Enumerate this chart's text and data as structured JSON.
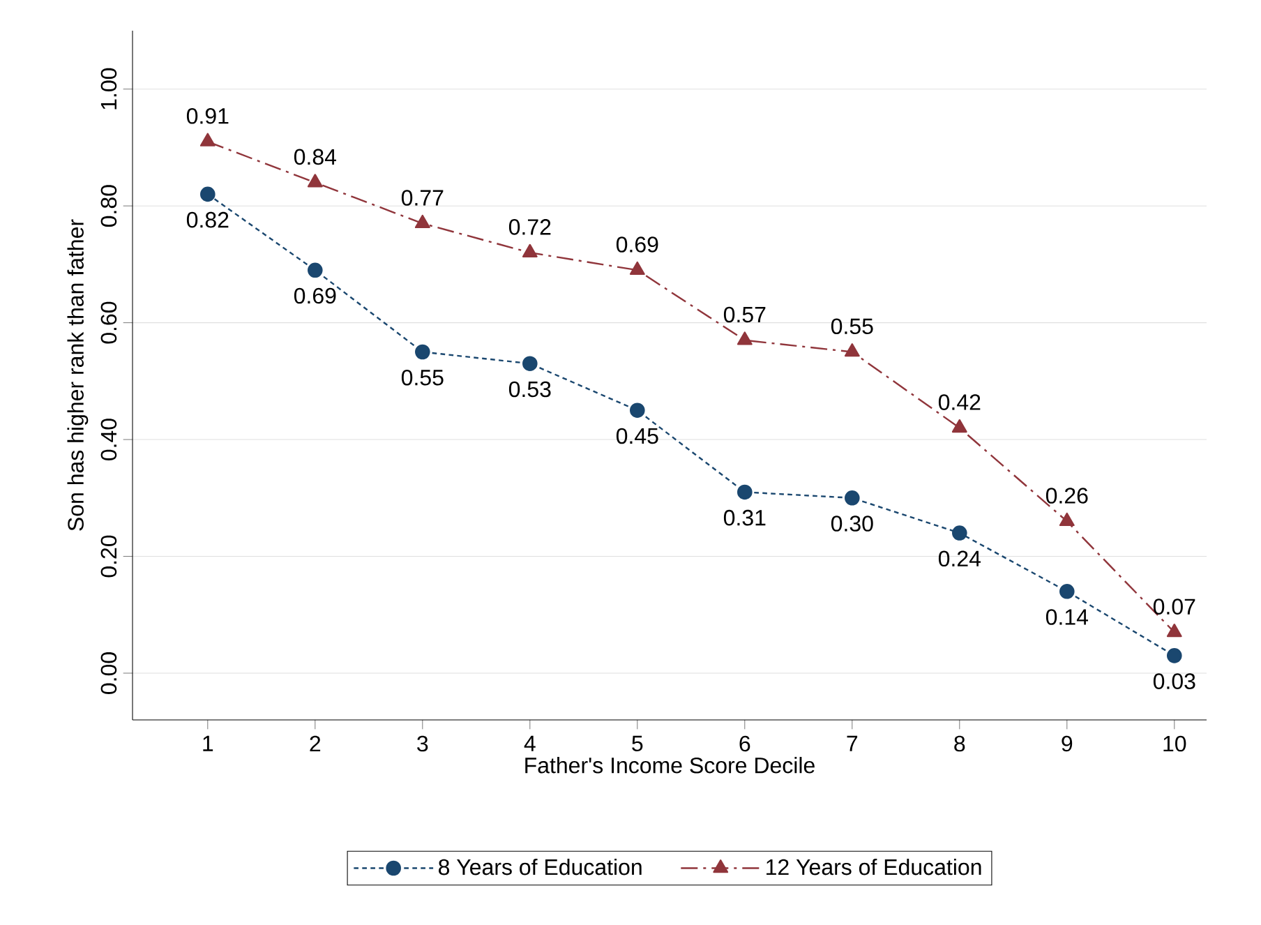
{
  "chart_data": {
    "type": "line",
    "xlabel": "Father's Income Score Decile",
    "ylabel": "Son has higher rank than father",
    "x": [
      1,
      2,
      3,
      4,
      5,
      6,
      7,
      8,
      9,
      10
    ],
    "series": [
      {
        "name": "8 Years of Education",
        "color": "#1a476f",
        "marker": "circle",
        "line_style": "dotted",
        "values": [
          0.82,
          0.69,
          0.55,
          0.53,
          0.45,
          0.31,
          0.3,
          0.24,
          0.14,
          0.03
        ],
        "value_labels": [
          "0.82",
          "0.69",
          "0.55",
          "0.53",
          "0.45",
          "0.31",
          "0.30",
          "0.24",
          "0.14",
          "0.03"
        ]
      },
      {
        "name": "12 Years of Education",
        "color": "#90353b",
        "marker": "triangle",
        "line_style": "dashdot",
        "values": [
          0.91,
          0.84,
          0.77,
          0.72,
          0.69,
          0.57,
          0.55,
          0.42,
          0.26,
          0.07
        ],
        "value_labels": [
          "0.91",
          "0.84",
          "0.77",
          "0.72",
          "0.69",
          "0.57",
          "0.55",
          "0.42",
          "0.26",
          "0.07"
        ]
      }
    ],
    "xlim": [
      0.3,
      10.3
    ],
    "ylim": [
      -0.08,
      1.1
    ],
    "xticks": [
      1,
      2,
      3,
      4,
      5,
      6,
      7,
      8,
      9,
      10
    ],
    "yticks": [
      {
        "value": 0,
        "label": "0.00"
      },
      {
        "value": 0.2,
        "label": "0.20"
      },
      {
        "value": 0.4,
        "label": "0.40"
      },
      {
        "value": 0.6,
        "label": "0.60"
      },
      {
        "value": 0.8,
        "label": "0.80"
      },
      {
        "value": 1.0,
        "label": "1.00"
      }
    ],
    "grid": "y",
    "legend": "bottom"
  }
}
